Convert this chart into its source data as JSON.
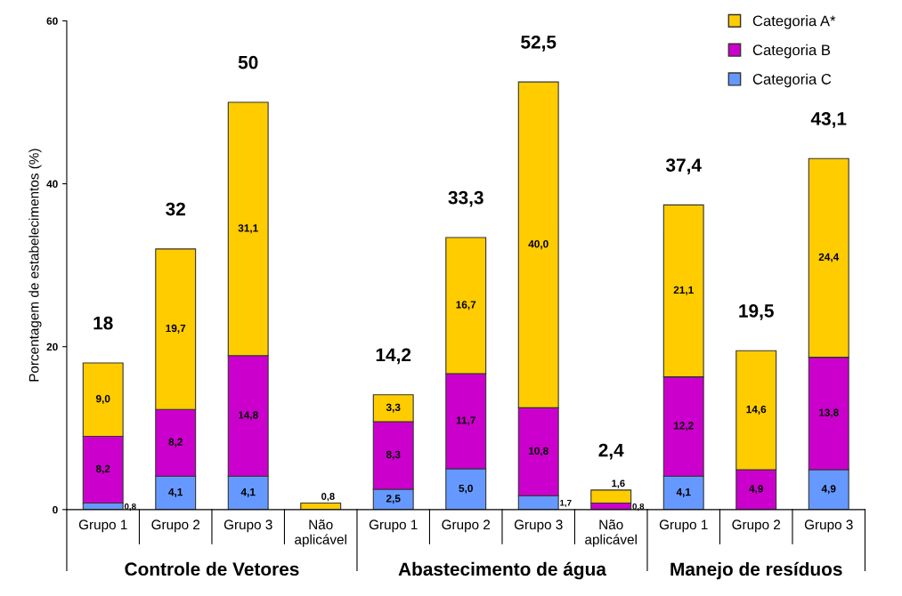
{
  "chart_data": {
    "type": "bar",
    "stacked": true,
    "ylabel": "Porcentagem de estabelecimentos (%)",
    "categories": [
      "Grupo 1",
      "Grupo 2",
      "Grupo 3",
      "Não aplicável",
      "Grupo 1",
      "Grupo 2",
      "Grupo 3",
      "Não aplicável",
      "Grupo 1",
      "Grupo 2",
      "Grupo 3"
    ],
    "series": [
      {
        "name": "Categoria C",
        "color": "#6699ff",
        "values": [
          0.8,
          4.1,
          4.1,
          null,
          2.5,
          5.0,
          1.7,
          null,
          4.1,
          null,
          4.9
        ],
        "value_labels": [
          "0,8",
          "4,1",
          "4,1",
          null,
          "2,5",
          "5,0",
          "1,7",
          null,
          "4,1",
          null,
          "4,9"
        ]
      },
      {
        "name": "Categoria B",
        "color": "#cc00cc",
        "values": [
          8.2,
          8.2,
          14.8,
          null,
          8.3,
          11.7,
          10.8,
          0.8,
          12.2,
          4.9,
          13.8
        ],
        "value_labels": [
          "8,2",
          "8,2",
          "14,8",
          null,
          "8,3",
          "11,7",
          "10,8",
          "0,8",
          "12,2",
          "4,9",
          "13,8"
        ]
      },
      {
        "name": "Categoria A*",
        "color": "#ffcc00",
        "values": [
          9.0,
          19.7,
          31.1,
          0.8,
          3.3,
          16.7,
          40.0,
          1.6,
          21.1,
          14.6,
          24.4
        ],
        "value_labels": [
          "9,0",
          "19,7",
          "31,1",
          "0,8",
          "3,3",
          "16,7",
          "40,0",
          "1,6",
          "21,1",
          "14,6",
          "24,4"
        ]
      }
    ],
    "totals": [
      "18",
      "32",
      "50",
      null,
      "14,2",
      "33,3",
      "52,5",
      "2,4",
      "37,4",
      "19,5",
      "43,1"
    ],
    "annotations": [
      "Controle de Vetores",
      "Abastecimento de água",
      "Manejo de resíduos"
    ],
    "ylim": [
      0,
      60
    ],
    "yticks": [
      0,
      20,
      40,
      60
    ],
    "grid": false,
    "legend": "top right"
  }
}
